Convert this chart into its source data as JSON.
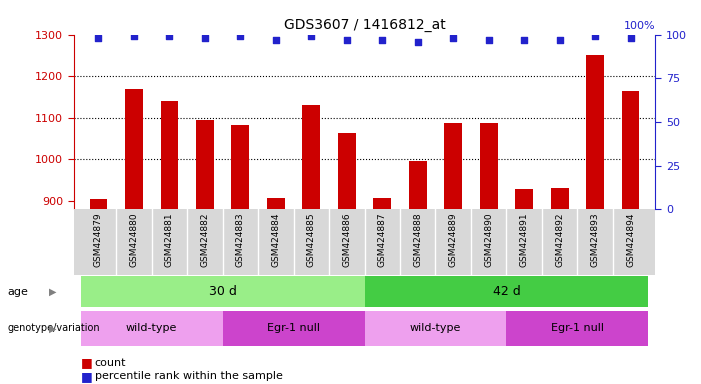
{
  "title": "GDS3607 / 1416812_at",
  "samples": [
    "GSM424879",
    "GSM424880",
    "GSM424881",
    "GSM424882",
    "GSM424883",
    "GSM424884",
    "GSM424885",
    "GSM424886",
    "GSM424887",
    "GSM424888",
    "GSM424889",
    "GSM424890",
    "GSM424891",
    "GSM424892",
    "GSM424893",
    "GSM424894"
  ],
  "counts": [
    905,
    1170,
    1140,
    1095,
    1082,
    908,
    1130,
    1063,
    907,
    995,
    1088,
    1088,
    928,
    930,
    1250,
    1165
  ],
  "percentiles": [
    98,
    99,
    99,
    98,
    99,
    97,
    99,
    97,
    97,
    96,
    98,
    97,
    97,
    97,
    99,
    98
  ],
  "ylim_left": [
    880,
    1300
  ],
  "ylim_right": [
    0,
    100
  ],
  "yticks_left": [
    900,
    1000,
    1100,
    1200,
    1300
  ],
  "yticks_right": [
    0,
    25,
    50,
    75,
    100
  ],
  "bar_color": "#cc0000",
  "dot_color": "#2222cc",
  "age_groups": [
    {
      "label": "30 d",
      "start": 0,
      "end": 8,
      "color": "#99ee88"
    },
    {
      "label": "42 d",
      "start": 8,
      "end": 16,
      "color": "#44cc44"
    }
  ],
  "genotype_groups": [
    {
      "label": "wild-type",
      "start": 0,
      "end": 4,
      "color": "#eea0ee"
    },
    {
      "label": "Egr-1 null",
      "start": 4,
      "end": 8,
      "color": "#cc44cc"
    },
    {
      "label": "wild-type",
      "start": 8,
      "end": 12,
      "color": "#eea0ee"
    },
    {
      "label": "Egr-1 null",
      "start": 12,
      "end": 16,
      "color": "#cc44cc"
    }
  ],
  "legend_count_label": "count",
  "legend_pct_label": "percentile rank within the sample",
  "age_label": "age",
  "genotype_label": "genotype/variation",
  "axis_color_left": "#cc0000",
  "axis_color_right": "#2222cc",
  "tick_bg_color": "#d8d8d8",
  "bar_width": 0.5
}
